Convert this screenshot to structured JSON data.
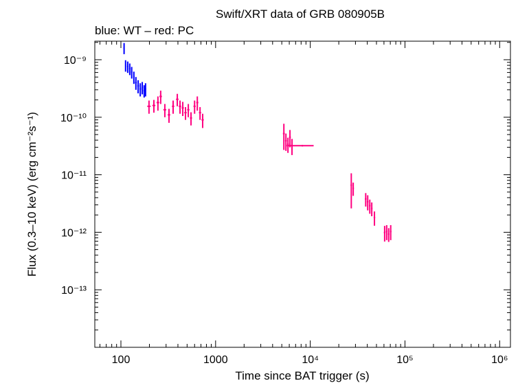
{
  "chart_data": {
    "type": "scatter",
    "title": "Swift/XRT data of GRB 080905B",
    "subtitle": "blue: WT – red: PC",
    "x_label": "Time since BAT trigger (s)",
    "y_label": "Flux (0.3–10 keV) (erg cm⁻²s⁻¹)",
    "log_x": true,
    "log_y": true,
    "xlim": [
      53,
      1300000
    ],
    "ylim": [
      1e-14,
      2.1e-09
    ],
    "xticks": [
      100,
      1000,
      {
        "value": 10000,
        "label": "10⁴"
      },
      {
        "value": 100000,
        "label": "10⁵"
      },
      {
        "value": 1000000,
        "label": "10⁶"
      }
    ],
    "yticks": [
      {
        "value": 1e-09,
        "label": "10⁻⁹"
      },
      {
        "value": 1e-10,
        "label": "10⁻¹⁰"
      },
      {
        "value": 1e-11,
        "label": "10⁻¹¹"
      },
      {
        "value": 1e-12,
        "label": "10⁻¹²"
      },
      {
        "value": 1e-13,
        "label": "10⁻¹³"
      }
    ],
    "series": [
      {
        "color": "#0000ff",
        "x": [
          108,
          112,
          118,
          124,
          130,
          137,
          144,
          152,
          160,
          168,
          176,
          182
        ],
        "xerr": [
          1.5,
          1.5,
          2,
          2,
          2,
          2,
          3,
          3,
          3,
          3,
          3,
          3
        ],
        "values": [
          1.6e-09,
          8e-10,
          7.6e-10,
          7e-10,
          6.1e-10,
          5e-10,
          4e-10,
          3.5e-10,
          3.1e-10,
          3.3e-10,
          2.9e-10,
          3.1e-10
        ],
        "yerr": [
          3.5e-10,
          1.8e-10,
          1.7e-10,
          1.6e-10,
          1.4e-10,
          1.2e-10,
          1e-10,
          9e-11,
          8e-11,
          8e-11,
          7e-11,
          8e-11
        ]
      },
      {
        "color": "#ff0080",
        "x": [
          198,
          223,
          246,
          263,
          291,
          322,
          356,
          394,
          421,
          450,
          481,
          515,
          550,
          600,
          641,
          685,
          730,
          5260,
          5530,
          5810,
          6100,
          6410,
          8250,
          27100,
          28400,
          38500,
          40400,
          42500,
          44600,
          47600,
          61000,
          64100,
          67300,
          70700
        ],
        "xerr": [
          8,
          8,
          8,
          8,
          10,
          10,
          10,
          12,
          12,
          12,
          14,
          14,
          14,
          16,
          16,
          18,
          20,
          120,
          120,
          120,
          130,
          130,
          2600,
          500,
          500,
          800,
          800,
          800,
          800,
          900,
          1200,
          1200,
          1200,
          1300
        ],
        "values": [
          1.55e-10,
          1.6e-10,
          1.8e-10,
          2.3e-10,
          1.35e-10,
          1.1e-10,
          1.55e-10,
          2.05e-10,
          1.55e-10,
          1.45e-10,
          1.2e-10,
          1.35e-10,
          9.7e-11,
          1.55e-10,
          1.8e-10,
          1.2e-10,
          9e-11,
          5.2e-11,
          3.9e-11,
          3.4e-11,
          4.5e-11,
          3.2e-11,
          3.2e-11,
          6.6e-12,
          5.8e-12,
          3.8e-12,
          3.4e-12,
          2.9e-12,
          2.6e-12,
          1.8e-12,
          9.9e-13,
          1.03e-12,
          9.3e-13,
          1.03e-12
        ],
        "yerr": [
          4e-11,
          4e-11,
          5e-11,
          6e-11,
          3.5e-11,
          3e-11,
          4e-11,
          5e-11,
          4e-11,
          4e-11,
          3e-11,
          3.5e-11,
          2.5e-11,
          4e-11,
          5e-11,
          3e-11,
          2.5e-11,
          2.5e-11,
          1.3e-11,
          1e-11,
          1.5e-11,
          1e-11,
          1e-12,
          4e-12,
          1.5e-12,
          1e-12,
          1e-12,
          8e-13,
          7e-13,
          5e-13,
          3e-13,
          3e-13,
          2.5e-13,
          3e-13
        ]
      }
    ]
  }
}
